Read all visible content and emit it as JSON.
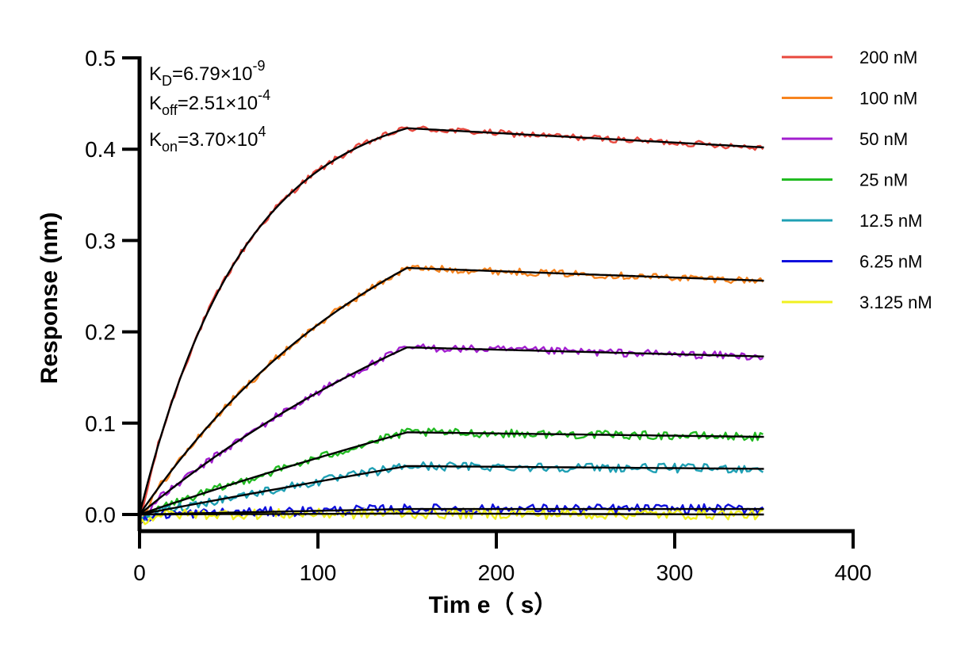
{
  "chart_data": {
    "type": "line",
    "xlabel": "Tim e（ s）",
    "ylabel": "Response (nm)",
    "xlim": [
      0,
      400
    ],
    "ylim": [
      0,
      0.5
    ],
    "x_ticks": [
      0,
      100,
      200,
      300,
      400
    ],
    "x_tick_labels": [
      "0",
      "100",
      "200",
      "300",
      "400"
    ],
    "y_ticks": [
      0,
      0.1,
      0.2,
      0.3,
      0.4,
      0.5
    ],
    "y_tick_labels": [
      "0.0",
      "0.1",
      "0.2",
      "0.3",
      "0.4",
      "0.5"
    ],
    "grid": false,
    "legend_position": "right",
    "association_end_s": 150,
    "end_time_s": 350,
    "annotations": {
      "kd": {
        "base": "K",
        "sub": "D",
        "value": "=6.79×10",
        "exp": "-9"
      },
      "koff": {
        "base": "K",
        "sub": "off",
        "value": "=2.51×10",
        "exp": "-4"
      },
      "kon": {
        "base": "K",
        "sub": "on",
        "value": "=3.70×10",
        "exp": "4"
      }
    },
    "series": [
      {
        "name": "200 nM",
        "color": "#e8483e",
        "plateau": 0.423,
        "dissociation_end": 0.402,
        "curvature": 1.3
      },
      {
        "name": "100 nM",
        "color": "#f7841f",
        "plateau": 0.27,
        "dissociation_end": 0.256,
        "curvature": 0.5
      },
      {
        "name": "50 nM",
        "color": "#a21ecf",
        "plateau": 0.183,
        "dissociation_end": 0.173,
        "curvature": 0.3
      },
      {
        "name": "25 nM",
        "color": "#22bb22",
        "plateau": 0.09,
        "dissociation_end": 0.085,
        "curvature": 0.1
      },
      {
        "name": "12.5 nM",
        "color": "#1fa0b4",
        "plateau": 0.053,
        "dissociation_end": 0.05,
        "curvature": 0.05
      },
      {
        "name": "6.25 nM",
        "color": "#1010dd",
        "plateau": 0.006,
        "dissociation_end": 0.006,
        "curvature": 0.0
      },
      {
        "name": "3.125 nM",
        "color": "#f0f020",
        "plateau": 0.001,
        "dissociation_end": 0.0,
        "curvature": 0.0
      }
    ],
    "fit_color": "#000000"
  }
}
